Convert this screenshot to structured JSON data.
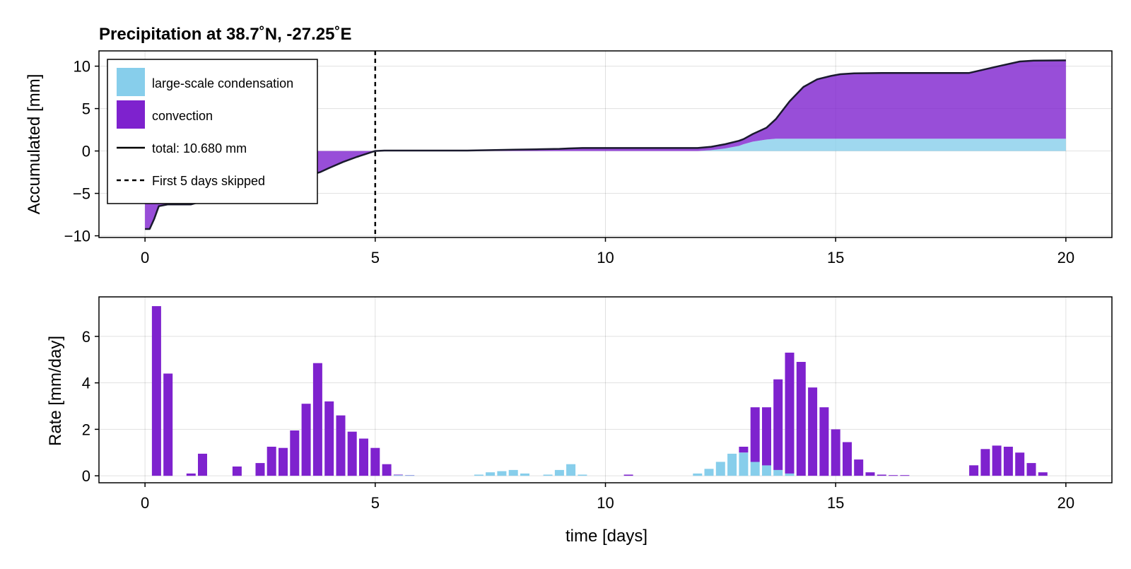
{
  "chart_data": [
    {
      "type": "area",
      "title": "Precipitation at 38.7˚N, -27.25˚E",
      "ylabel": "Accumulated [mm]",
      "xlabel": "",
      "xlim": [
        -1,
        21
      ],
      "ylim": [
        -10.2,
        11.8
      ],
      "xticks": [
        "0",
        "5",
        "10",
        "15",
        "20"
      ],
      "xtick_values": [
        0,
        5,
        10,
        15,
        20
      ],
      "yticks": [
        "−10",
        "−5",
        "0",
        "5",
        "10"
      ],
      "ytick_values": [
        -10,
        -5,
        0,
        5,
        10
      ],
      "grid": true,
      "legend_position": "top-left",
      "colors": {
        "large_scale": "#87ceeb",
        "convection": "#7e22ce",
        "total": "#1a1a2e",
        "skip": "#000000"
      },
      "x": [
        0,
        0.1,
        0.2,
        0.3,
        0.5,
        1.0,
        1.2,
        1.5,
        2.0,
        2.5,
        3.0,
        3.5,
        3.8,
        4.0,
        4.3,
        4.6,
        5.0,
        5.2,
        6.0,
        7.0,
        7.5,
        8.0,
        8.5,
        9.0,
        9.2,
        9.5,
        10.0,
        10.5,
        11.0,
        11.5,
        12.0,
        12.3,
        12.6,
        12.9,
        13.0,
        13.2,
        13.5,
        13.7,
        14.0,
        14.3,
        14.6,
        14.9,
        15.1,
        15.4,
        16.0,
        17.0,
        17.9,
        18.5,
        19.0,
        19.3,
        20.0
      ],
      "series": [
        {
          "name": "large-scale condensation",
          "values": [
            0,
            0,
            0,
            0,
            0,
            0,
            0,
            0,
            0,
            0,
            0,
            0,
            0,
            0,
            0,
            0,
            0,
            0,
            0,
            0,
            0,
            0,
            0,
            0,
            0,
            0,
            0,
            0,
            0,
            0,
            0,
            0.1,
            0.3,
            0.6,
            0.8,
            1.1,
            1.35,
            1.45,
            1.45,
            1.45,
            1.45,
            1.45,
            1.45,
            1.45,
            1.45,
            1.45,
            1.45,
            1.45,
            1.45,
            1.45,
            1.45
          ]
        },
        {
          "name": "convection",
          "values": [
            -9.2,
            -9.2,
            -8.0,
            -6.5,
            -6.3,
            -6.3,
            -6.0,
            -5.5,
            -5.0,
            -4.5,
            -4.0,
            -3.0,
            -2.5,
            -2.0,
            -1.3,
            -0.7,
            0,
            0.05,
            0.05,
            0.05,
            0.1,
            0.15,
            0.2,
            0.25,
            0.3,
            0.35,
            0.35,
            0.35,
            0.35,
            0.35,
            0.35,
            0.4,
            0.5,
            0.6,
            0.6,
            0.9,
            1.4,
            2.3,
            4.4,
            6.1,
            7.0,
            7.4,
            7.6,
            7.7,
            7.75,
            7.75,
            7.75,
            8.5,
            9.1,
            9.2,
            9.23
          ]
        },
        {
          "name": "total: 10.680 mm",
          "values": [
            -9.2,
            -9.2,
            -8.0,
            -6.5,
            -6.3,
            -6.3,
            -6.0,
            -5.5,
            -5.0,
            -4.5,
            -4.0,
            -3.0,
            -2.5,
            -2.0,
            -1.3,
            -0.7,
            0,
            0.05,
            0.05,
            0.05,
            0.1,
            0.15,
            0.2,
            0.25,
            0.3,
            0.35,
            0.35,
            0.35,
            0.35,
            0.35,
            0.35,
            0.5,
            0.8,
            1.2,
            1.4,
            2.0,
            2.75,
            3.75,
            5.85,
            7.55,
            8.45,
            8.85,
            9.05,
            9.15,
            9.2,
            9.2,
            9.2,
            9.95,
            10.55,
            10.65,
            10.68
          ]
        }
      ],
      "annotations": [
        {
          "type": "vline",
          "x": 5,
          "name": "First 5 days skipped"
        }
      ],
      "legend": [
        {
          "label": "large-scale condensation",
          "kind": "patch",
          "color": "#87ceeb"
        },
        {
          "label": "convection",
          "kind": "patch",
          "color": "#7e22ce"
        },
        {
          "label": "total: 10.680 mm",
          "kind": "line"
        },
        {
          "label": "First 5 days skipped",
          "kind": "dashed"
        }
      ]
    },
    {
      "type": "bar",
      "title": "",
      "xlabel": "time [days]",
      "ylabel": "Rate [mm/day]",
      "xlim": [
        -1,
        21
      ],
      "ylim": [
        -0.3,
        7.7
      ],
      "xticks": [
        "0",
        "5",
        "10",
        "15",
        "20"
      ],
      "xtick_values": [
        0,
        5,
        10,
        15,
        20
      ],
      "yticks": [
        "0",
        "2",
        "4",
        "6"
      ],
      "ytick_values": [
        0,
        2,
        4,
        6
      ],
      "grid": true,
      "stacked": true,
      "bar_width": 0.2,
      "x": [
        0.25,
        0.5,
        1.0,
        1.25,
        2.0,
        2.5,
        2.75,
        3.0,
        3.25,
        3.5,
        3.75,
        4.0,
        4.25,
        4.5,
        4.75,
        5.0,
        5.25,
        5.5,
        5.75,
        7.25,
        7.5,
        7.75,
        8.0,
        8.25,
        8.75,
        9.0,
        9.25,
        9.5,
        10.5,
        12.0,
        12.25,
        12.5,
        12.75,
        13.0,
        13.25,
        13.5,
        13.75,
        14.0,
        14.25,
        14.5,
        14.75,
        15.0,
        15.25,
        15.5,
        15.75,
        16.0,
        16.25,
        16.5,
        18.0,
        18.25,
        18.5,
        18.75,
        19.0,
        19.25,
        19.5
      ],
      "series": [
        {
          "name": "large-scale condensation",
          "values": [
            0,
            0,
            0,
            0,
            0,
            0,
            0,
            0,
            0,
            0,
            0,
            0,
            0,
            0,
            0,
            0,
            0,
            0.03,
            0.02,
            0.05,
            0.15,
            0.2,
            0.25,
            0.1,
            0.05,
            0.25,
            0.5,
            0.05,
            0,
            0.1,
            0.3,
            0.6,
            0.95,
            1.0,
            0.6,
            0.45,
            0.25,
            0.1,
            0,
            0,
            0,
            0,
            0,
            0,
            0,
            0,
            0,
            0,
            0,
            0,
            0,
            0,
            0,
            0,
            0
          ]
        },
        {
          "name": "convection",
          "values": [
            7.3,
            4.4,
            0.1,
            0.95,
            0.4,
            0.55,
            1.25,
            1.2,
            1.95,
            3.1,
            4.85,
            3.2,
            2.6,
            1.9,
            1.6,
            1.2,
            0.5,
            0.02,
            0.01,
            0,
            0,
            0,
            0,
            0,
            0,
            0,
            0,
            0,
            0.05,
            0,
            0,
            0,
            0,
            0.25,
            2.35,
            2.5,
            3.9,
            5.2,
            4.9,
            3.8,
            2.95,
            2.0,
            1.45,
            0.7,
            0.15,
            0.05,
            0.03,
            0.03,
            0.45,
            1.15,
            1.3,
            1.25,
            1.0,
            0.55,
            0.15
          ]
        }
      ]
    }
  ]
}
